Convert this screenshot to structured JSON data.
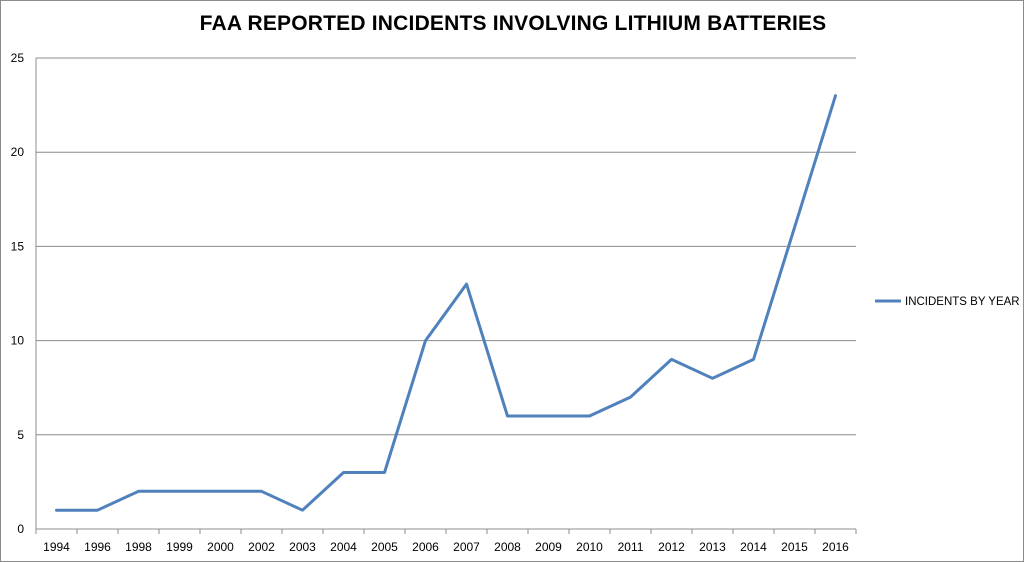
{
  "chart_data": {
    "type": "line",
    "title": "FAA REPORTED INCIDENTS INVOLVING LITHIUM BATTERIES",
    "xlabel": "",
    "ylabel": "",
    "categories": [
      "1994",
      "1996",
      "1998",
      "1999",
      "2000",
      "2002",
      "2003",
      "2004",
      "2005",
      "2006",
      "2007",
      "2008",
      "2009",
      "2010",
      "2011",
      "2012",
      "2013",
      "2014",
      "2015",
      "2016"
    ],
    "series": [
      {
        "name": "INCIDENTS BY YEAR",
        "values": [
          1,
          1,
          2,
          2,
          2,
          2,
          1,
          3,
          3,
          10,
          13,
          6,
          6,
          6,
          7,
          9,
          8,
          9,
          16,
          23
        ],
        "color": "#4f81bd"
      }
    ],
    "ylim": [
      0,
      25
    ],
    "yticks": [
      0,
      5,
      10,
      15,
      20,
      25
    ],
    "grid": true,
    "legend_position": "right"
  }
}
